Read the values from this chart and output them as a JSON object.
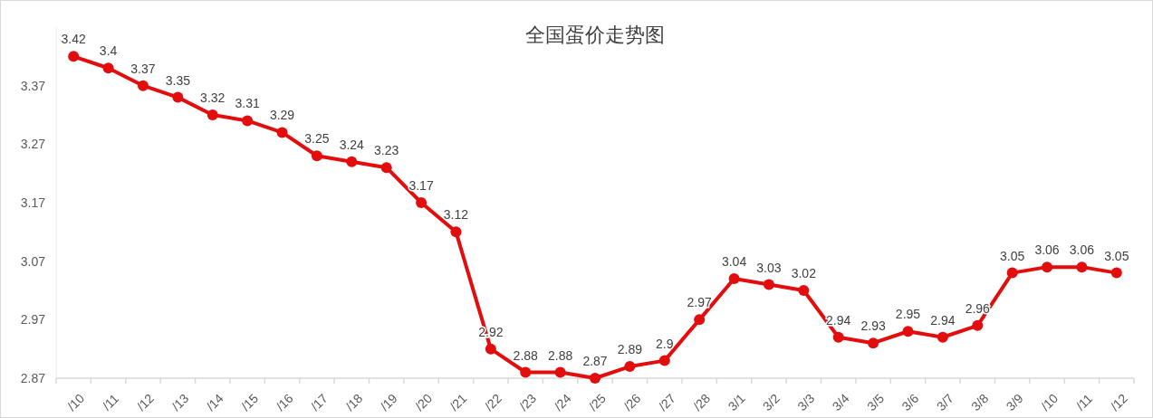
{
  "chart_data": {
    "type": "line",
    "title": "全国蛋价走势图",
    "categories": [
      "/10",
      "/11",
      "/12",
      "/13",
      "/14",
      "/15",
      "/16",
      "/17",
      "/18",
      "/19",
      "/20",
      "/21",
      "/22",
      "/23",
      "/24",
      "/25",
      "/26",
      "/27",
      "/28",
      "3/1",
      "3/2",
      "3/3",
      "3/4",
      "3/5",
      "3/6",
      "3/7",
      "3/8",
      "3/9",
      "/10",
      "/11",
      "/12"
    ],
    "series": [
      {
        "color": "#e30d0d",
        "values": [
          3.42,
          3.4,
          3.37,
          3.35,
          3.32,
          3.31,
          3.29,
          3.25,
          3.24,
          3.23,
          3.17,
          3.12,
          2.92,
          2.88,
          2.88,
          2.87,
          2.89,
          2.9,
          2.97,
          3.04,
          3.03,
          3.02,
          2.94,
          2.93,
          2.95,
          2.94,
          2.96,
          3.05,
          3.06,
          3.06,
          3.05
        ]
      }
    ],
    "ylim": [
      2.87,
      3.47
    ],
    "yticks": [
      2.87,
      2.97,
      3.07,
      3.17,
      3.27,
      3.37
    ],
    "data_labels": true,
    "marker": "circle",
    "line_style": "solid",
    "grid": false
  }
}
